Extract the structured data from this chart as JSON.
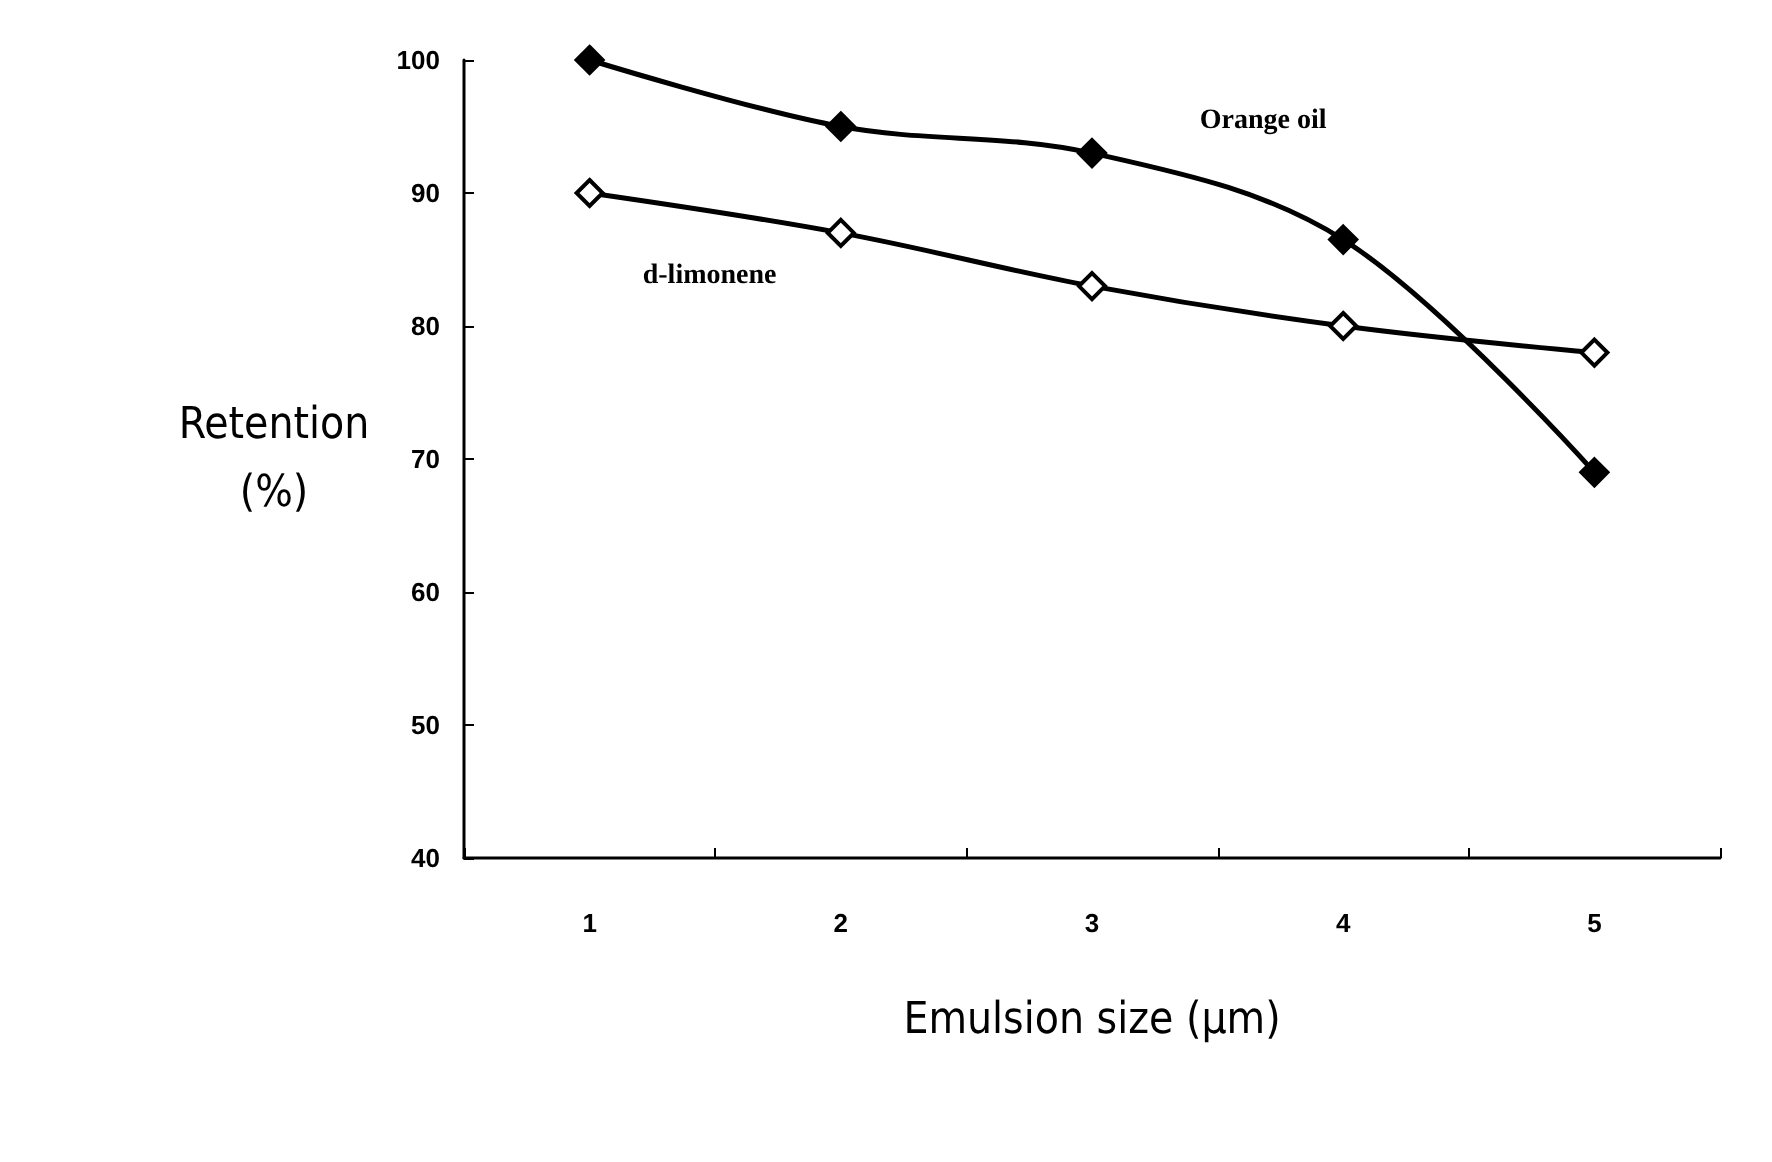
{
  "chart_data": {
    "type": "line",
    "xlabel": "Emulsion size (μm)",
    "ylabel": "Retention\n(%)",
    "categories": [
      "1",
      "2",
      "3",
      "4",
      "5"
    ],
    "series": [
      {
        "name": "Orange oil",
        "color": "#000000",
        "marker": "diamond",
        "values": [
          100,
          95,
          93,
          86.5,
          69
        ]
      },
      {
        "name": "d-limonene",
        "color": "#000000",
        "marker": "diamond",
        "values": [
          90,
          87,
          83,
          80,
          78
        ]
      }
    ],
    "ylim": [
      40,
      100
    ],
    "yticks": [
      40,
      50,
      60,
      70,
      80,
      90,
      100
    ],
    "grid": false,
    "legend": false,
    "line_style": "solid"
  }
}
